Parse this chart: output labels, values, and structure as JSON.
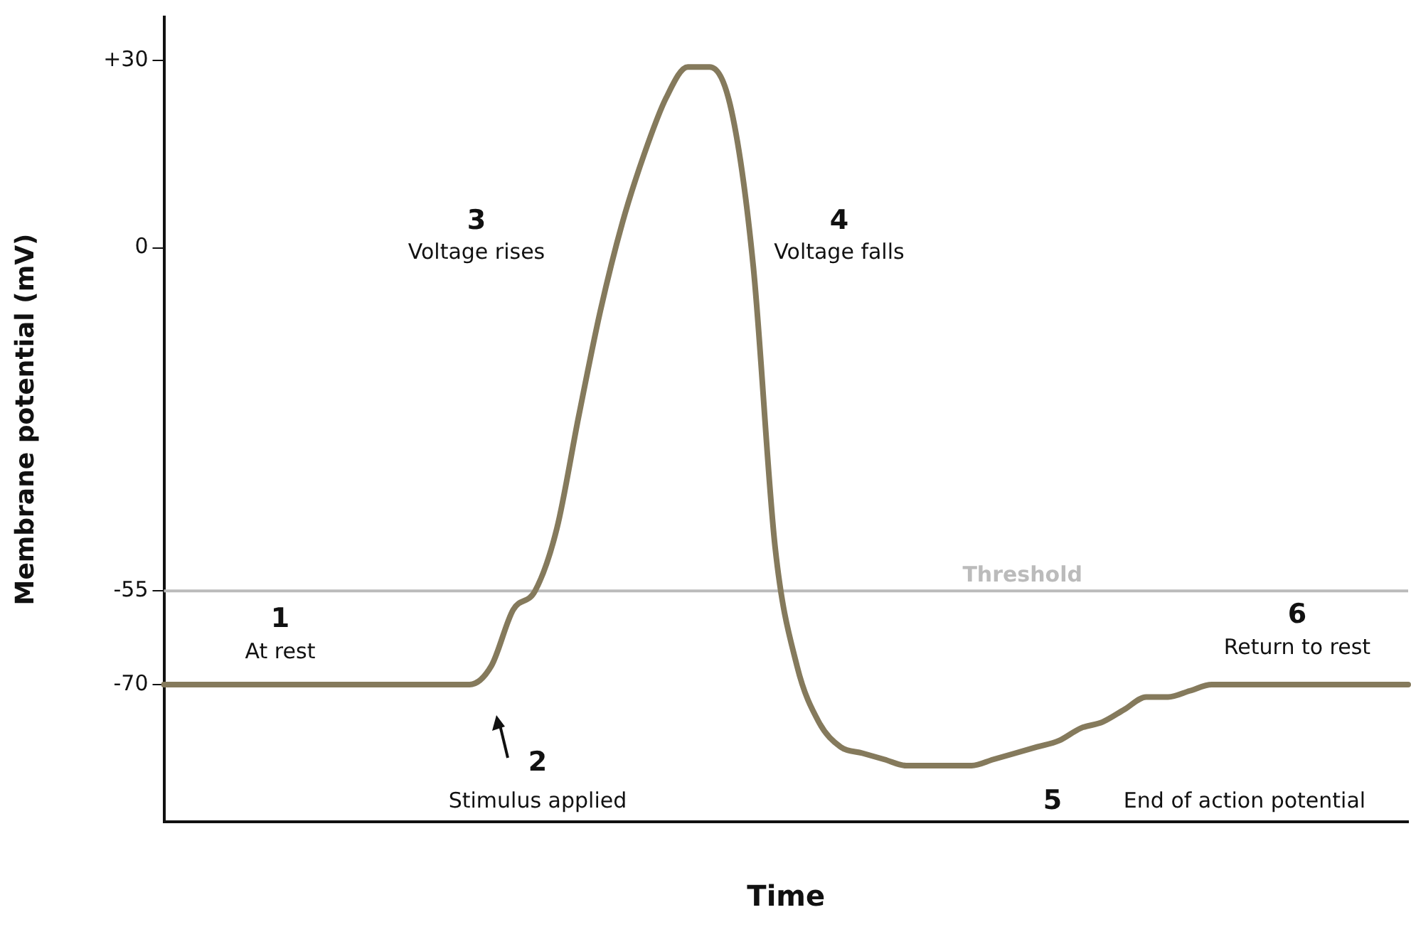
{
  "chart_data": {
    "type": "line",
    "xlabel": "Time",
    "ylabel": "Membrane potential (mV)",
    "categories": [
      null,
      null,
      null,
      null,
      null,
      null,
      null,
      null,
      null,
      null,
      null,
      null,
      null,
      null,
      null,
      null,
      null,
      null,
      null,
      null,
      null,
      null,
      null,
      null,
      null,
      null,
      null,
      null,
      null,
      null,
      null,
      null,
      null,
      null,
      null,
      null,
      null,
      null,
      null,
      null,
      null,
      null,
      null,
      null,
      null,
      null,
      null,
      null,
      null,
      null,
      null,
      null,
      null,
      null,
      null,
      null,
      null,
      null
    ],
    "series": [
      {
        "color": "#857a5c",
        "values": [
          -70,
          -70,
          -70,
          -70,
          -70,
          -70,
          -70,
          -70,
          -70,
          -70,
          -70,
          -70,
          -70,
          -70,
          -70,
          -67,
          -58,
          -55,
          -45,
          -27,
          -10,
          4,
          15,
          24,
          29,
          29,
          22,
          -3,
          -48,
          -67,
          -76,
          -80,
          -81,
          -82,
          -83,
          -83,
          -83,
          -83,
          -82,
          -81,
          -80,
          -79,
          -77,
          -76,
          -74,
          -72,
          -72,
          -71,
          -70,
          -70,
          -70,
          -70,
          -70,
          -70,
          -70,
          -70,
          -70,
          -70
        ]
      }
    ],
    "ylim": [
      -92,
      37
    ],
    "yticks": [
      {
        "value": 30,
        "label": "+30"
      },
      0,
      -55,
      -70
    ],
    "grid": false,
    "legend": false,
    "marker": "none",
    "line_style": "solid",
    "ref_lines": [
      {
        "axis": "y",
        "value": -55,
        "label": "Threshold",
        "color": "#bbbbbb"
      }
    ],
    "annotations": [
      "1",
      "At rest",
      "2",
      "Stimulus applied",
      "3",
      "Voltage rises",
      "4",
      "Voltage falls",
      "5",
      "End of action potential",
      "6",
      "Return to rest"
    ]
  }
}
